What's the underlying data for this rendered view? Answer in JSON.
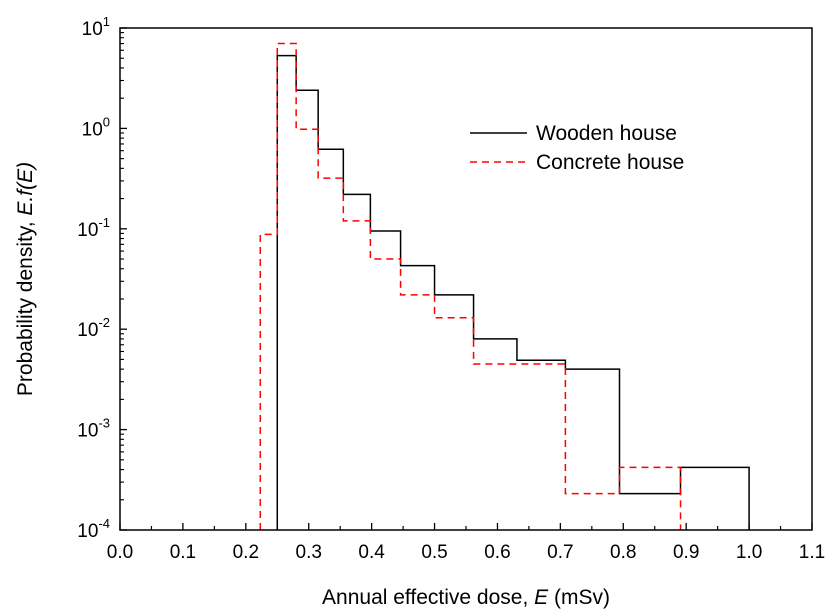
{
  "chart_data": {
    "type": "step",
    "xlabel_prefix": "Annual effective dose, ",
    "xlabel_var": "E",
    "xlabel_suffix": " (mSv)",
    "ylabel_prefix": "Probability density, ",
    "ylabel_var": "E.f(E)",
    "xlim": [
      0.0,
      1.1
    ],
    "ylim": [
      0.0001,
      10
    ],
    "yscale": "log",
    "x_ticks": [
      "0.0",
      "0.1",
      "0.2",
      "0.3",
      "0.4",
      "0.5",
      "0.6",
      "0.7",
      "0.8",
      "0.9",
      "1.0",
      "1.1"
    ],
    "y_ticks": [
      {
        "base": "10",
        "exp": "-4"
      },
      {
        "base": "10",
        "exp": "-3"
      },
      {
        "base": "10",
        "exp": "-2"
      },
      {
        "base": "10",
        "exp": "-1"
      },
      {
        "base": "10",
        "exp": "0"
      },
      {
        "base": "10",
        "exp": "1"
      }
    ],
    "legend_position": "upper-right",
    "series": [
      {
        "name": "Wooden house",
        "color": "#000000",
        "dash": "solid",
        "edges": [
          0.25,
          0.28,
          0.315,
          0.355,
          0.398,
          0.446,
          0.5,
          0.562,
          0.631,
          0.708,
          0.794,
          0.891,
          1.0
        ],
        "values": [
          5.3,
          2.4,
          0.62,
          0.22,
          0.095,
          0.043,
          0.022,
          0.008,
          0.0049,
          0.004,
          0.00023,
          0.00042
        ]
      },
      {
        "name": "Concrete house",
        "color": "#ff0000",
        "dash": "dashed",
        "edges": [
          0.223,
          0.25,
          0.28,
          0.315,
          0.355,
          0.398,
          0.446,
          0.5,
          0.562,
          0.708,
          0.794,
          0.891
        ],
        "values": [
          0.088,
          7.0,
          0.98,
          0.32,
          0.12,
          0.05,
          0.022,
          0.013,
          0.0045,
          0.00023,
          0.00042
        ]
      }
    ]
  }
}
